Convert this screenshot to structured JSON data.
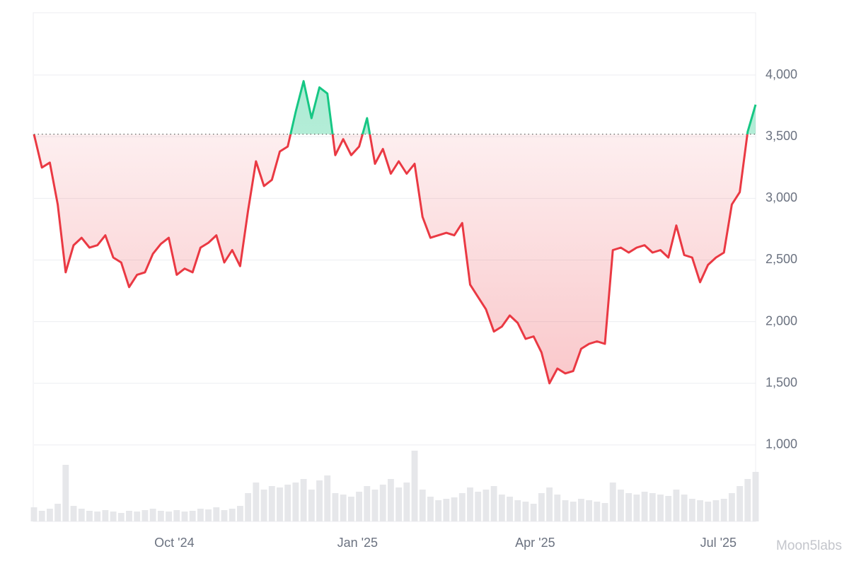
{
  "chart_data": {
    "type": "line",
    "baseline": 3520,
    "up_color": "#16c784",
    "down_color": "#ea3943",
    "volume_color": "#e6e7ea",
    "watermark": "Moon5labs",
    "xlim": [
      0,
      91
    ],
    "xticks": [
      {
        "value": 17.7,
        "label": "Oct '24"
      },
      {
        "value": 40.8,
        "label": "Jan '25"
      },
      {
        "value": 63.2,
        "label": "Apr '25"
      },
      {
        "value": 86.3,
        "label": "Jul '25"
      }
    ],
    "ylim": [
      380,
      4505
    ],
    "yticks": [
      {
        "value": 1000,
        "label": "1,000"
      },
      {
        "value": 1500,
        "label": "1,500"
      },
      {
        "value": 2000,
        "label": "2,000"
      },
      {
        "value": 2500,
        "label": "2,500"
      },
      {
        "value": 3000,
        "label": "3,000"
      },
      {
        "value": 3500,
        "label": "3,500"
      },
      {
        "value": 4000,
        "label": "4,000"
      }
    ],
    "grid": true,
    "values": [
      3520,
      3250,
      3290,
      2950,
      2400,
      2620,
      2680,
      2600,
      2620,
      2700,
      2520,
      2480,
      2280,
      2380,
      2400,
      2550,
      2630,
      2680,
      2380,
      2430,
      2400,
      2600,
      2640,
      2700,
      2480,
      2580,
      2450,
      2900,
      3300,
      3100,
      3150,
      3380,
      3420,
      3700,
      3950,
      3650,
      3900,
      3850,
      3350,
      3480,
      3350,
      3420,
      3650,
      3280,
      3400,
      3200,
      3300,
      3200,
      3280,
      2850,
      2680,
      2700,
      2720,
      2700,
      2800,
      2300,
      2200,
      2100,
      1920,
      1960,
      2050,
      1990,
      1860,
      1880,
      1750,
      1500,
      1620,
      1580,
      1600,
      1780,
      1820,
      1840,
      1820,
      2580,
      2600,
      2560,
      2600,
      2620,
      2560,
      2580,
      2520,
      2780,
      2540,
      2520,
      2320,
      2460,
      2520,
      2560,
      2950,
      3050,
      3540,
      3760
    ],
    "volume": [
      20,
      15,
      18,
      25,
      80,
      22,
      18,
      15,
      14,
      16,
      14,
      12,
      15,
      14,
      16,
      18,
      15,
      14,
      16,
      14,
      15,
      18,
      17,
      20,
      16,
      18,
      22,
      40,
      55,
      45,
      50,
      48,
      52,
      55,
      60,
      45,
      58,
      65,
      40,
      38,
      35,
      42,
      50,
      45,
      52,
      60,
      48,
      55,
      100,
      45,
      35,
      30,
      32,
      34,
      40,
      48,
      42,
      45,
      50,
      38,
      35,
      30,
      28,
      25,
      40,
      48,
      38,
      30,
      28,
      32,
      30,
      28,
      26,
      55,
      45,
      40,
      38,
      42,
      40,
      38,
      36,
      45,
      38,
      32,
      30,
      28,
      30,
      32,
      40,
      50,
      60,
      70
    ]
  }
}
